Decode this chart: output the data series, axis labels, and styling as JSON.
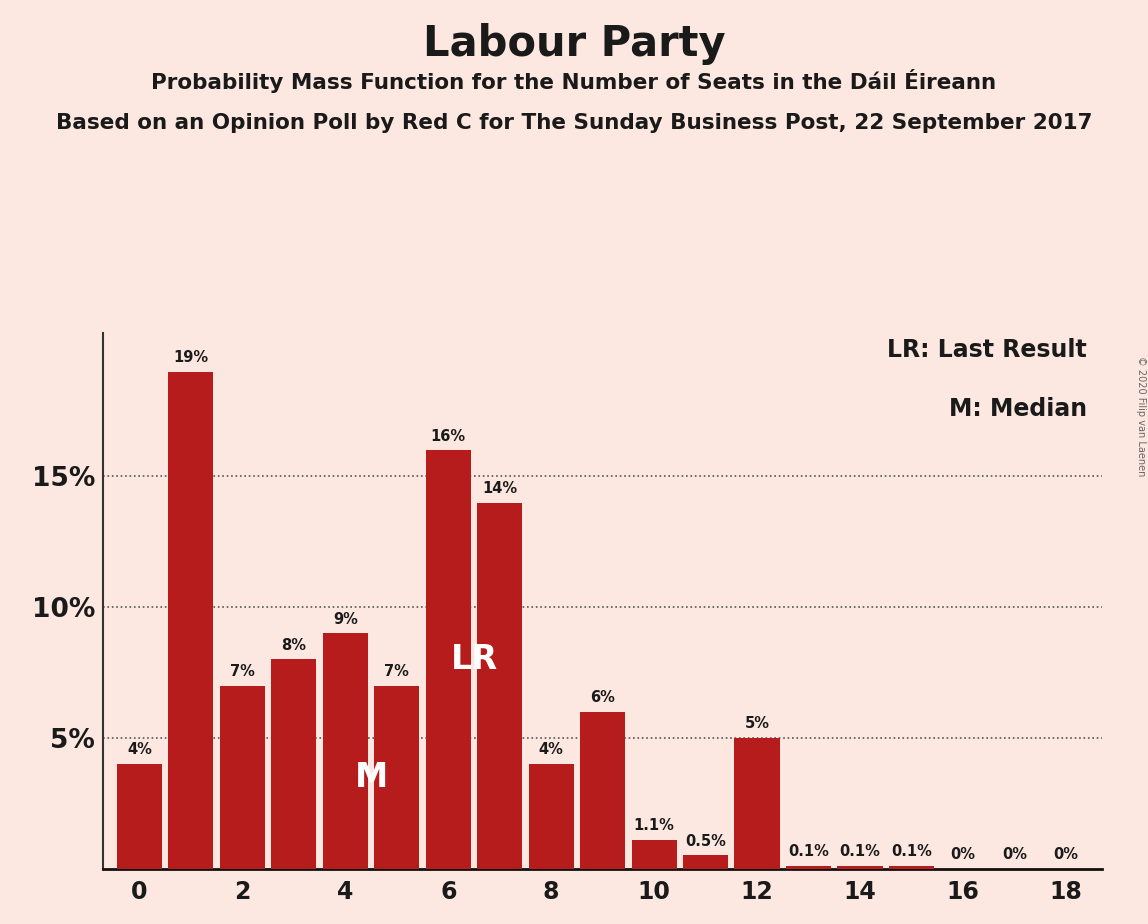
{
  "title": "Labour Party",
  "subtitle1": "Probability Mass Function for the Number of Seats in the Dáil Éireann",
  "subtitle2": "Based on an Opinion Poll by Red C for The Sunday Business Post, 22 September 2017",
  "copyright": "© 2020 Filip van Laenen",
  "x_values": [
    0,
    1,
    2,
    3,
    4,
    5,
    6,
    7,
    8,
    9,
    10,
    11,
    12,
    13,
    14,
    15,
    16,
    17,
    18
  ],
  "y_values": [
    4,
    19,
    7,
    8,
    9,
    7,
    16,
    14,
    4,
    6,
    1.1,
    0.5,
    5,
    0.1,
    0.1,
    0.1,
    0,
    0,
    0
  ],
  "bar_labels": [
    "4%",
    "19%",
    "7%",
    "8%",
    "9%",
    "7%",
    "16%",
    "14%",
    "4%",
    "6%",
    "1.1%",
    "0.5%",
    "5%",
    "0.1%",
    "0.1%",
    "0.1%",
    "0%",
    "0%",
    "0%"
  ],
  "bar_color": "#b71c1c",
  "background_color": "#fce8e0",
  "title_color": "#1a1a1a",
  "ytick_values": [
    5,
    10,
    15
  ],
  "ytick_labels": [
    "5%",
    "10%",
    "15%"
  ],
  "ylim": [
    0,
    20.5
  ],
  "xlim": [
    -0.7,
    18.7
  ],
  "legend_lr": "LR: Last Result",
  "legend_m": "M: Median",
  "lr_bar_x": 6.5,
  "lr_bar_y": 8.0,
  "median_bar_x": 4.5,
  "median_bar_y": 3.5,
  "bar_width": 0.88
}
